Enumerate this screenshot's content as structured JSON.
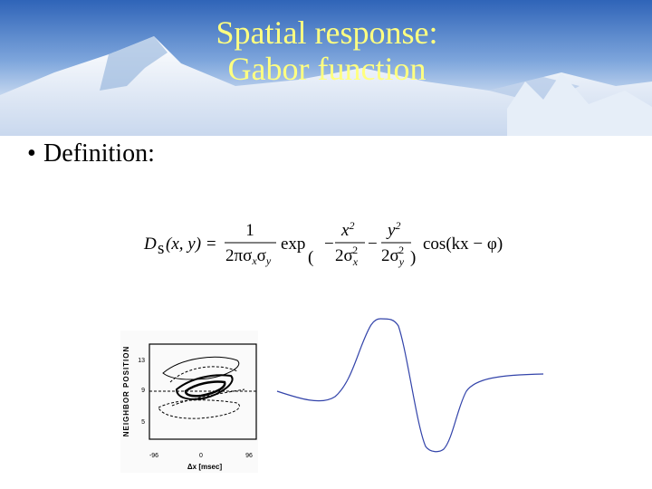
{
  "slide": {
    "title": [
      "Spatial response:",
      "Gabor function"
    ],
    "bullet": "Definition:",
    "formula": {
      "lhs": "D",
      "lhs_subscript": "s",
      "args": "(x, y) =",
      "fraction_numerator": "1",
      "fraction_denominator": [
        "2πσ",
        "x",
        "σ",
        "y"
      ],
      "exp": "exp",
      "open_paren": "(",
      "close_paren": ")",
      "terms": [
        {
          "sign": "−",
          "numerator": [
            "x",
            "2"
          ],
          "denominator": [
            "2σ",
            "x",
            "2"
          ]
        },
        {
          "sign": "−",
          "numerator": [
            "y",
            "2"
          ],
          "denominator": [
            "2σ",
            "y",
            "2"
          ]
        }
      ],
      "cos": "cos(kx − φ)"
    },
    "figure": {
      "y_label": "NEIGHBOR POSITION",
      "y_ticks": [
        "13",
        "9",
        "5"
      ],
      "x_ticks": [
        "-96",
        "0",
        "96"
      ],
      "x_label": "Δx [msec]"
    }
  }
}
